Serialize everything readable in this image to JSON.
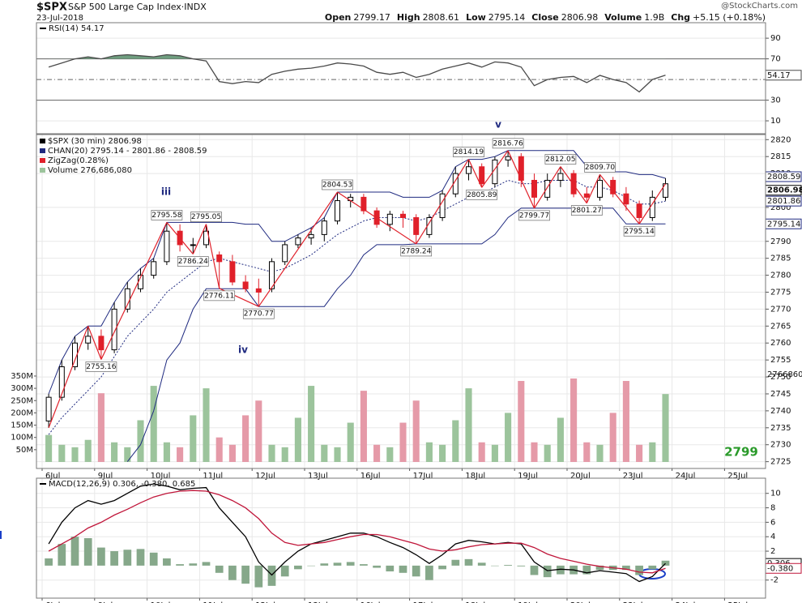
{
  "watermark": "@StockCharts.com",
  "chart_data": [
    {
      "type": "line",
      "legend": "RSI(14) 54.17",
      "ylim": [
        -2.5,
        105
      ],
      "yticks": [
        90,
        70,
        30,
        10
      ],
      "levels": [
        70,
        50,
        30
      ],
      "fill_above": 70,
      "fill_color": "#6f9e7f",
      "series": [
        {
          "color": "#4a4a4a",
          "last_value_box": true,
          "values": [
            62,
            66,
            70,
            72,
            70,
            73,
            74,
            73,
            72,
            74,
            73,
            70,
            68,
            48,
            46,
            48,
            47,
            55,
            58,
            60,
            61,
            63,
            66,
            65,
            63,
            57,
            55,
            57,
            52,
            55,
            60,
            63,
            66,
            62,
            67,
            66,
            62,
            44,
            50,
            52,
            53,
            47,
            54,
            50,
            47,
            38,
            50,
            54.17
          ]
        }
      ]
    },
    {
      "type": "candlestick",
      "symbol": "$SPX",
      "title": "S&P 500 Large Cap Index·INDX",
      "date": "23-Jul-2018",
      "quote": [
        {
          "label": "Open",
          "value": 2799.17
        },
        {
          "label": "High",
          "value": 2808.61
        },
        {
          "label": "Low",
          "value": 2795.14
        },
        {
          "label": "Close",
          "value": 2806.98
        },
        {
          "label": "Volume",
          "value": "1.9B"
        },
        {
          "label": "Chg",
          "value": "+5.15 (+0.18%)"
        }
      ],
      "name": "$SPX (30 min) 2806.98",
      "ylim": [
        2723,
        2821.5
      ],
      "yticks": [
        2820,
        2815,
        2810,
        2800,
        2790,
        2785,
        2780,
        2775,
        2770,
        2765,
        2760,
        2755,
        2750,
        2745,
        2740,
        2735,
        2730,
        2725
      ],
      "categories": [
        "6Jul",
        null,
        null,
        null,
        "9Jul",
        null,
        null,
        null,
        "10Jul",
        null,
        null,
        null,
        "11Jul",
        null,
        null,
        null,
        "12Jul",
        null,
        null,
        null,
        "13Jul",
        null,
        null,
        null,
        "16Jul",
        null,
        null,
        null,
        "17Jul",
        null,
        null,
        null,
        "18Jul",
        null,
        null,
        null,
        "19Jul",
        null,
        null,
        null,
        "20Jul",
        null,
        null,
        null,
        "23Jul",
        null,
        null,
        null,
        "24Jul",
        null,
        null,
        null,
        "25Jul"
      ],
      "open": [
        2737,
        2744,
        2753,
        2760,
        2762,
        2758,
        2770,
        2776,
        2780,
        2784,
        2793,
        2789,
        2789,
        2786,
        2784,
        2778,
        2776,
        2776,
        2784,
        2789,
        2791,
        2792,
        2796,
        2802,
        2803,
        2799,
        2795,
        2798,
        2797,
        2792,
        2797,
        2804,
        2810,
        2812,
        2807,
        2814,
        2815,
        2808,
        2803,
        2808,
        2810,
        2804,
        2803,
        2808,
        2804,
        2801,
        2797,
        2803,
        null,
        null,
        null,
        null,
        null
      ],
      "high": [
        2745,
        2755,
        2762,
        2765,
        2764,
        2772,
        2778,
        2782,
        2785,
        2795.58,
        2795,
        2791,
        2795.05,
        2787,
        2786,
        2780,
        2779,
        2785,
        2790,
        2792,
        2794,
        2797,
        2804.53,
        2804,
        2804,
        2800,
        2799,
        2799,
        2798,
        2798,
        2805,
        2812,
        2814.19,
        2813,
        2815,
        2816.76,
        2816,
        2810,
        2810,
        2812.05,
        2811,
        2806,
        2809.7,
        2809,
        2806,
        2802,
        2805,
        2808.61,
        null,
        null,
        null,
        null,
        null
      ],
      "low": [
        2735,
        2743,
        2752,
        2758,
        2755.16,
        2757,
        2769,
        2775,
        2779,
        2783,
        2787,
        2786.24,
        2788,
        2776.11,
        2777,
        2775,
        2770.77,
        2775,
        2783,
        2788,
        2789,
        2790,
        2795,
        2800,
        2798,
        2794,
        2793,
        2794,
        2789.24,
        2791,
        2796,
        2803,
        2808,
        2805.89,
        2806,
        2812,
        2806,
        2799.77,
        2802,
        2806,
        2803,
        2801.27,
        2802,
        2803,
        2799,
        2795.14,
        2796,
        2802,
        null,
        null,
        null,
        null,
        null
      ],
      "close": [
        2744,
        2753,
        2760,
        2762,
        2758,
        2770,
        2776,
        2780,
        2784,
        2793,
        2789,
        2789,
        2793,
        2784,
        2778,
        2776,
        2775,
        2784,
        2789,
        2791,
        2792,
        2796,
        2802,
        2803,
        2799,
        2795,
        2798,
        2797,
        2792,
        2797,
        2804,
        2810,
        2812,
        2807,
        2814,
        2815,
        2808,
        2803,
        2808,
        2810,
        2804,
        2803,
        2808,
        2804,
        2801,
        2797,
        2803,
        2806.98,
        null,
        null,
        null,
        null,
        null
      ],
      "up_color": "#000000",
      "down_color": "#e0202a",
      "channel": {
        "name": "CHAN(20) 2795.14 - 2801.86 - 2808.59",
        "color": "#1f2a80",
        "upper": [
          2745,
          2755,
          2762,
          2765,
          2765,
          2772,
          2778,
          2782,
          2785,
          2795.58,
          2795.58,
          2795.58,
          2795.58,
          2795.58,
          2795.58,
          2795.05,
          2795.05,
          2790,
          2790,
          2792,
          2794,
          2797,
          2804.53,
          2804.53,
          2804.53,
          2804.53,
          2804.53,
          2803,
          2803,
          2803,
          2805,
          2812,
          2814.19,
          2814.19,
          2815,
          2816.76,
          2816.76,
          2816.76,
          2816.76,
          2816.76,
          2816.76,
          2812.05,
          2812.05,
          2810.5,
          2810.5,
          2809.7,
          2809.7,
          2808.59,
          null,
          null,
          null,
          null,
          null
        ],
        "middle": [
          2733,
          2738,
          2742,
          2746,
          2750,
          2756,
          2762,
          2766,
          2770,
          2775,
          2778,
          2781,
          2784,
          2785,
          2784,
          2783,
          2782,
          2781,
          2782,
          2784,
          2786,
          2789,
          2792,
          2794,
          2796,
          2797,
          2797,
          2797,
          2796,
          2797,
          2799,
          2801,
          2803,
          2804,
          2806,
          2808,
          2807,
          2807,
          2808,
          2808,
          2808,
          2806,
          2806,
          2805,
          2803,
          2801,
          2801,
          2801.86,
          null,
          null,
          null,
          null,
          null
        ],
        "lower": [
          null,
          null,
          null,
          null,
          null,
          null,
          2725,
          2730,
          2740,
          2755,
          2760,
          2770,
          2776,
          2776,
          2776,
          2776,
          2770.77,
          2770.77,
          2770.77,
          2770.77,
          2770.77,
          2770.77,
          2776,
          2780,
          2786,
          2789,
          2789,
          2789,
          2789.24,
          2789.24,
          2789.24,
          2789.24,
          2789.24,
          2789.24,
          2792,
          2797,
          2799.77,
          2799.77,
          2799.77,
          2799.77,
          2799.77,
          2799.77,
          2799.77,
          2799.77,
          2795.14,
          2795.14,
          2795.14,
          2795.14,
          null,
          null,
          null,
          null,
          null
        ]
      },
      "zigzag": {
        "name": "ZigZag(0.28%)",
        "color": "#e0202a",
        "values": [
          2735,
          null,
          null,
          2765,
          2755.16,
          null,
          null,
          null,
          null,
          2795.58,
          null,
          2786.24,
          2795.05,
          2776.11,
          null,
          null,
          2770.77,
          null,
          null,
          null,
          null,
          null,
          2804.53,
          null,
          null,
          null,
          null,
          null,
          2789.24,
          null,
          null,
          null,
          2814.19,
          2805.89,
          null,
          2816.76,
          null,
          2799.77,
          null,
          2812.05,
          null,
          2801.27,
          2809.7,
          null,
          null,
          2795.14,
          null,
          2806.98,
          null,
          null,
          null,
          null,
          null
        ],
        "value_labels": [
          null,
          null,
          null,
          null,
          "2755.16",
          null,
          null,
          null,
          null,
          "2795.58",
          null,
          "2786.24",
          "2795.05",
          "2776.11",
          null,
          null,
          "2770.77",
          null,
          null,
          null,
          null,
          null,
          "2804.53",
          null,
          null,
          null,
          null,
          null,
          "2789.24",
          null,
          null,
          null,
          "2814.19",
          "2805.89",
          null,
          "2816.76",
          null,
          "2799.77",
          null,
          "2812.05",
          null,
          "2801.27",
          "2809.70",
          null,
          null,
          "2795.14",
          null,
          null,
          null,
          null,
          null,
          null,
          null
        ]
      },
      "volume": {
        "name": "Volume 276,686,080",
        "up_color": "#9cc49c",
        "down_color": "#e59aa8",
        "ylim": [
          0,
          1350000000
        ],
        "yticks": [
          {
            "value": 350000000,
            "label": "350M"
          },
          {
            "value": 300000000,
            "label": "300M"
          },
          {
            "value": 250000000,
            "label": "250M"
          },
          {
            "value": 200000000,
            "label": "200M"
          },
          {
            "value": 150000000,
            "label": "150M"
          },
          {
            "value": 100000000,
            "label": "100M"
          },
          {
            "value": 50000000,
            "label": "50M"
          }
        ],
        "values": [
          110000000,
          70000000,
          60000000,
          90000000,
          280000000,
          80000000,
          60000000,
          170000000,
          310000000,
          80000000,
          60000000,
          190000000,
          300000000,
          100000000,
          70000000,
          190000000,
          250000000,
          70000000,
          60000000,
          180000000,
          310000000,
          70000000,
          60000000,
          160000000,
          290000000,
          70000000,
          60000000,
          160000000,
          250000000,
          80000000,
          70000000,
          170000000,
          300000000,
          80000000,
          70000000,
          200000000,
          330000000,
          80000000,
          70000000,
          180000000,
          340000000,
          80000000,
          70000000,
          200000000,
          330000000,
          70000000,
          80000000,
          276686080,
          null,
          null,
          null,
          null,
          null
        ]
      },
      "annotations": [
        "iii",
        "iv",
        "v",
        "2766860",
        "2799"
      ]
    },
    {
      "type": "line",
      "legend": "MACD(12,26,9) 0.306, -0.380, 0.685",
      "ylim": [
        -4.5,
        12.1
      ],
      "yticks": [
        10,
        8,
        6,
        4,
        2,
        -2
      ],
      "categories": [
        "6Jul",
        null,
        null,
        null,
        "9Jul",
        null,
        null,
        null,
        "10Jul",
        null,
        null,
        null,
        "11Jul",
        null,
        null,
        null,
        "12Jul",
        null,
        null,
        null,
        "13Jul",
        null,
        null,
        null,
        "16Jul",
        null,
        null,
        null,
        "17Jul",
        null,
        null,
        null,
        "18Jul",
        null,
        null,
        null,
        "19Jul",
        null,
        null,
        null,
        "20Jul",
        null,
        null,
        null,
        "23Jul",
        null,
        null,
        null,
        "24Jul",
        null,
        null,
        null,
        "25Jul"
      ],
      "series": [
        {
          "type": "bar",
          "color": "#86a88a",
          "values": [
            1,
            3,
            4,
            3.8,
            2.5,
            2,
            2.2,
            2.3,
            1.8,
            1,
            0.2,
            0.3,
            0.5,
            -1,
            -2,
            -2.5,
            -3,
            -2.8,
            -1.5,
            -0.5,
            0,
            0.3,
            0.4,
            0.5,
            0.2,
            -0.3,
            -0.8,
            -1,
            -1.5,
            -2,
            -0.5,
            0.8,
            0.9,
            0.4,
            0,
            0.1,
            -0.1,
            -1.3,
            -1.6,
            -1.2,
            -1.2,
            -1.2,
            -0.6,
            -0.6,
            -0.6,
            -1.3,
            -0.5,
            0.685,
            null,
            null,
            null,
            null,
            null
          ]
        },
        {
          "color": "#000000",
          "last_value_box": true,
          "values": [
            3,
            6,
            8,
            9,
            8.5,
            9,
            10,
            11,
            11.3,
            11,
            10.5,
            10.7,
            10.8,
            8,
            6,
            4,
            0.5,
            -1.3,
            0.5,
            2,
            3,
            3.5,
            4,
            4.5,
            4.5,
            4,
            3.2,
            2.5,
            1.5,
            0.3,
            1.5,
            3,
            3.5,
            3.3,
            3,
            3.2,
            3,
            0.5,
            -0.7,
            -0.5,
            -0.6,
            -1,
            -0.7,
            -0.9,
            -1.1,
            -2.2,
            -1.5,
            0.306,
            null,
            null,
            null,
            null,
            null
          ]
        },
        {
          "color": "#c0163a",
          "last_value_box": true,
          "values": [
            2,
            3,
            4,
            5.2,
            6,
            7,
            7.8,
            8.7,
            9.5,
            10,
            10.3,
            10.4,
            10.3,
            9.8,
            9,
            8,
            6.5,
            4.5,
            3.2,
            2.8,
            3,
            3.2,
            3.6,
            4,
            4.3,
            4.3,
            4,
            3.5,
            3,
            2.3,
            2,
            2.2,
            2.6,
            2.9,
            3,
            3.1,
            3.1,
            2.5,
            1.6,
            1,
            0.6,
            0.2,
            -0.1,
            -0.3,
            -0.5,
            -0.9,
            -1,
            -0.38,
            null,
            null,
            null,
            null,
            null
          ],
          "value_labels": [
            null,
            null,
            null,
            null,
            null,
            null,
            null,
            null,
            null,
            null,
            null,
            null,
            null,
            null,
            null,
            null,
            null,
            null,
            null,
            null,
            null,
            null,
            null,
            null,
            null,
            null,
            null,
            null,
            null,
            null,
            null,
            null,
            null,
            null,
            null,
            null,
            null,
            null,
            null,
            null,
            null,
            null,
            null,
            null,
            null,
            null,
            null,
            "-0.380",
            null,
            null,
            null,
            null,
            null
          ]
        }
      ]
    }
  ]
}
